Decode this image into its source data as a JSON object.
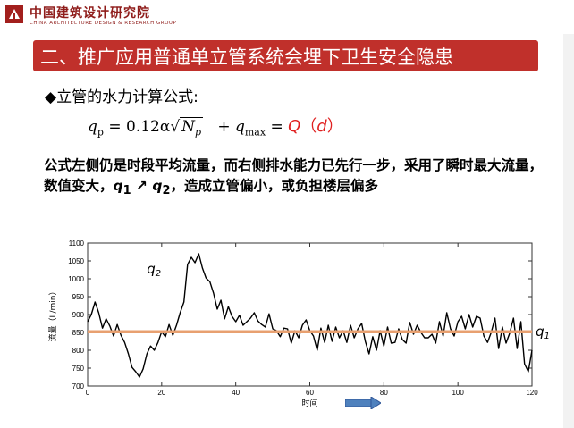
{
  "header": {
    "org_cn": "中国建筑设计研究院",
    "org_en": "CHINA ARCHITECTURE DESIGN & RESEARCH GROUP"
  },
  "slide": {
    "title": "二、推广应用普通单立管系统会埋下卫生安全隐患",
    "bullet": "◆立管的水力计算公式:",
    "formula": {
      "lhs_q": "q",
      "lhs_sub": "p",
      "eq": " = 0.12α",
      "sqrt_n": "N",
      "sqrt_sub": "p",
      "plus": "+ ",
      "q2": "q",
      "q2_sub": "max",
      "eq2": " = ",
      "rhs_Q": "Q",
      "rhs_paren_open": "（",
      "rhs_d": "d",
      "rhs_paren_close": "）"
    },
    "note_part1": "公式左侧仍是时段平均流量，而右侧排水能力已先行一步，采用了瞬时最大流量，数值变大，",
    "note_q1": "q",
    "note_q1_sub": "1",
    "note_arrow": " ↗ ",
    "note_q2": "q",
    "note_q2_sub": "2",
    "note_part2": "，造成立管偏小，或负担楼层偏多"
  },
  "chart_data": {
    "type": "line",
    "xlabel": "时间",
    "ylabel": "流量（L/min）",
    "xlim": [
      0,
      120
    ],
    "ylim": [
      700,
      1100
    ],
    "xticks": [
      0,
      20,
      40,
      60,
      80,
      100,
      120
    ],
    "yticks": [
      700,
      750,
      800,
      850,
      900,
      950,
      1000,
      1050,
      1100
    ],
    "annotations": [
      {
        "text": "q2",
        "x": 16,
        "y": 1015
      },
      {
        "text": "q1",
        "x": 121,
        "y": 840
      }
    ],
    "series": [
      {
        "color": "#000000",
        "x": [
          0,
          1,
          2,
          3,
          4,
          5,
          6,
          7,
          8,
          9,
          10,
          11,
          12,
          13,
          14,
          15,
          16,
          17,
          18,
          19,
          20,
          21,
          22,
          23,
          24,
          25,
          26,
          27,
          28,
          29,
          30,
          31,
          32,
          33,
          34,
          35,
          36,
          37,
          38,
          39,
          40,
          41,
          42,
          43,
          44,
          45,
          46,
          47,
          48,
          49,
          50,
          51,
          52,
          53,
          54,
          55,
          56,
          57,
          58,
          59,
          60,
          61,
          62,
          63,
          64,
          65,
          66,
          67,
          68,
          69,
          70,
          71,
          72,
          73,
          74,
          75,
          76,
          77,
          78,
          79,
          80,
          81,
          82,
          83,
          84,
          85,
          86,
          87,
          88,
          89,
          90,
          91,
          92,
          93,
          94,
          95,
          96,
          97,
          98,
          99,
          100,
          101,
          102,
          103,
          104,
          105,
          106,
          107,
          108,
          109,
          110,
          111,
          112,
          113,
          114,
          115,
          116,
          117,
          118,
          119,
          120
        ],
        "values": [
          880,
          900,
          935,
          905,
          862,
          888,
          868,
          840,
          872,
          842,
          822,
          790,
          752,
          740,
          725,
          748,
          790,
          812,
          800,
          822,
          852,
          838,
          872,
          842,
          870,
          905,
          935,
          1040,
          1060,
          1045,
          1070,
          1030,
          1002,
          992,
          960,
          915,
          940,
          888,
          922,
          895,
          880,
          898,
          870,
          880,
          890,
          905,
          882,
          872,
          865,
          902,
          860,
          855,
          838,
          862,
          860,
          820,
          855,
          835,
          870,
          885,
          855,
          840,
          800,
          862,
          822,
          870,
          825,
          865,
          835,
          855,
          822,
          870,
          835,
          860,
          875,
          825,
          790,
          838,
          800,
          855,
          812,
          865,
          820,
          822,
          860,
          830,
          820,
          878,
          845,
          870,
          850,
          835,
          835,
          845,
          820,
          880,
          840,
          905,
          860,
          840,
          880,
          895,
          860,
          900,
          865,
          895,
          890,
          840,
          822,
          850,
          890,
          805,
          865,
          820,
          848,
          890,
          805,
          880,
          762,
          740,
          800
        ]
      },
      {
        "name": "",
        "color": "#e8a070",
        "x": [
          0,
          120
        ],
        "values": [
          852,
          852
        ]
      }
    ]
  }
}
